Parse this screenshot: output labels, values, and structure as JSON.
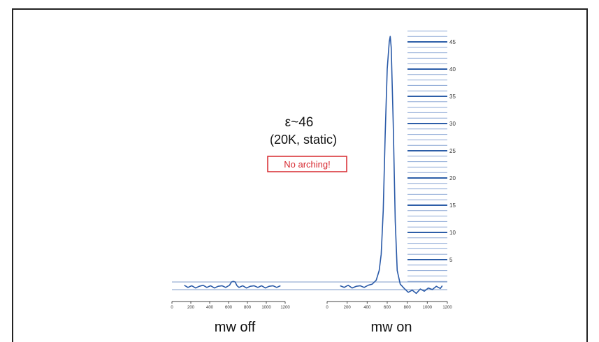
{
  "annotation": {
    "enhancement": "ε~46",
    "conditions": "(20K, static)",
    "note": "No arching!"
  },
  "colors": {
    "trace": "#2a5aa8",
    "baseline": "#7f9bc8",
    "scale_major": "#2d5ea8",
    "scale_minor": "#8aa6d4",
    "note_border": "#d7282f",
    "note_text": "#d7282f"
  },
  "chart_data": [
    {
      "type": "line",
      "label": "mw off",
      "xlim": [
        0,
        1200
      ],
      "xticks": [
        0,
        200,
        400,
        600,
        800,
        1000,
        1200
      ],
      "ylim": [
        0,
        46
      ],
      "series": [
        {
          "x": [
            130,
            170,
            210,
            250,
            290,
            330,
            370,
            410,
            450,
            490,
            530,
            570,
            610,
            630,
            650,
            670,
            690,
            710,
            750,
            790,
            830,
            870,
            910,
            950,
            990,
            1030,
            1070,
            1110,
            1150
          ],
          "y": [
            0.3,
            -0.1,
            0.2,
            -0.2,
            0.1,
            0.3,
            -0.1,
            0.2,
            -0.2,
            0.1,
            0.2,
            -0.1,
            0.3,
            0.9,
            1.0,
            0.9,
            0.2,
            -0.1,
            0.2,
            -0.2,
            0.1,
            0.2,
            -0.1,
            0.2,
            -0.2,
            0.1,
            0.2,
            -0.1,
            0.2
          ]
        }
      ]
    },
    {
      "type": "line",
      "label": "mw on",
      "xlim": [
        0,
        1200
      ],
      "xticks": [
        0,
        200,
        400,
        600,
        800,
        1000,
        1200
      ],
      "ylim": [
        0,
        46
      ],
      "peak": 46,
      "scale_ticks": [
        5,
        10,
        15,
        20,
        25,
        30,
        35,
        40,
        45
      ],
      "series": [
        {
          "x": [
            130,
            170,
            210,
            250,
            290,
            330,
            370,
            410,
            450,
            490,
            520,
            540,
            560,
            580,
            600,
            620,
            630,
            640,
            660,
            680,
            700,
            730,
            770,
            810,
            850,
            890,
            930,
            970,
            1010,
            1050,
            1090,
            1130,
            1150
          ],
          "y": [
            0.2,
            -0.1,
            0.3,
            -0.2,
            0.1,
            0.2,
            -0.1,
            0.3,
            0.5,
            1.2,
            3,
            6,
            14,
            28,
            40,
            45,
            46,
            44,
            30,
            12,
            3,
            0.5,
            -0.3,
            -1.0,
            -0.6,
            -1.2,
            -0.4,
            -0.8,
            -0.2,
            -0.5,
            0.1,
            -0.3,
            0.2
          ]
        }
      ]
    }
  ]
}
